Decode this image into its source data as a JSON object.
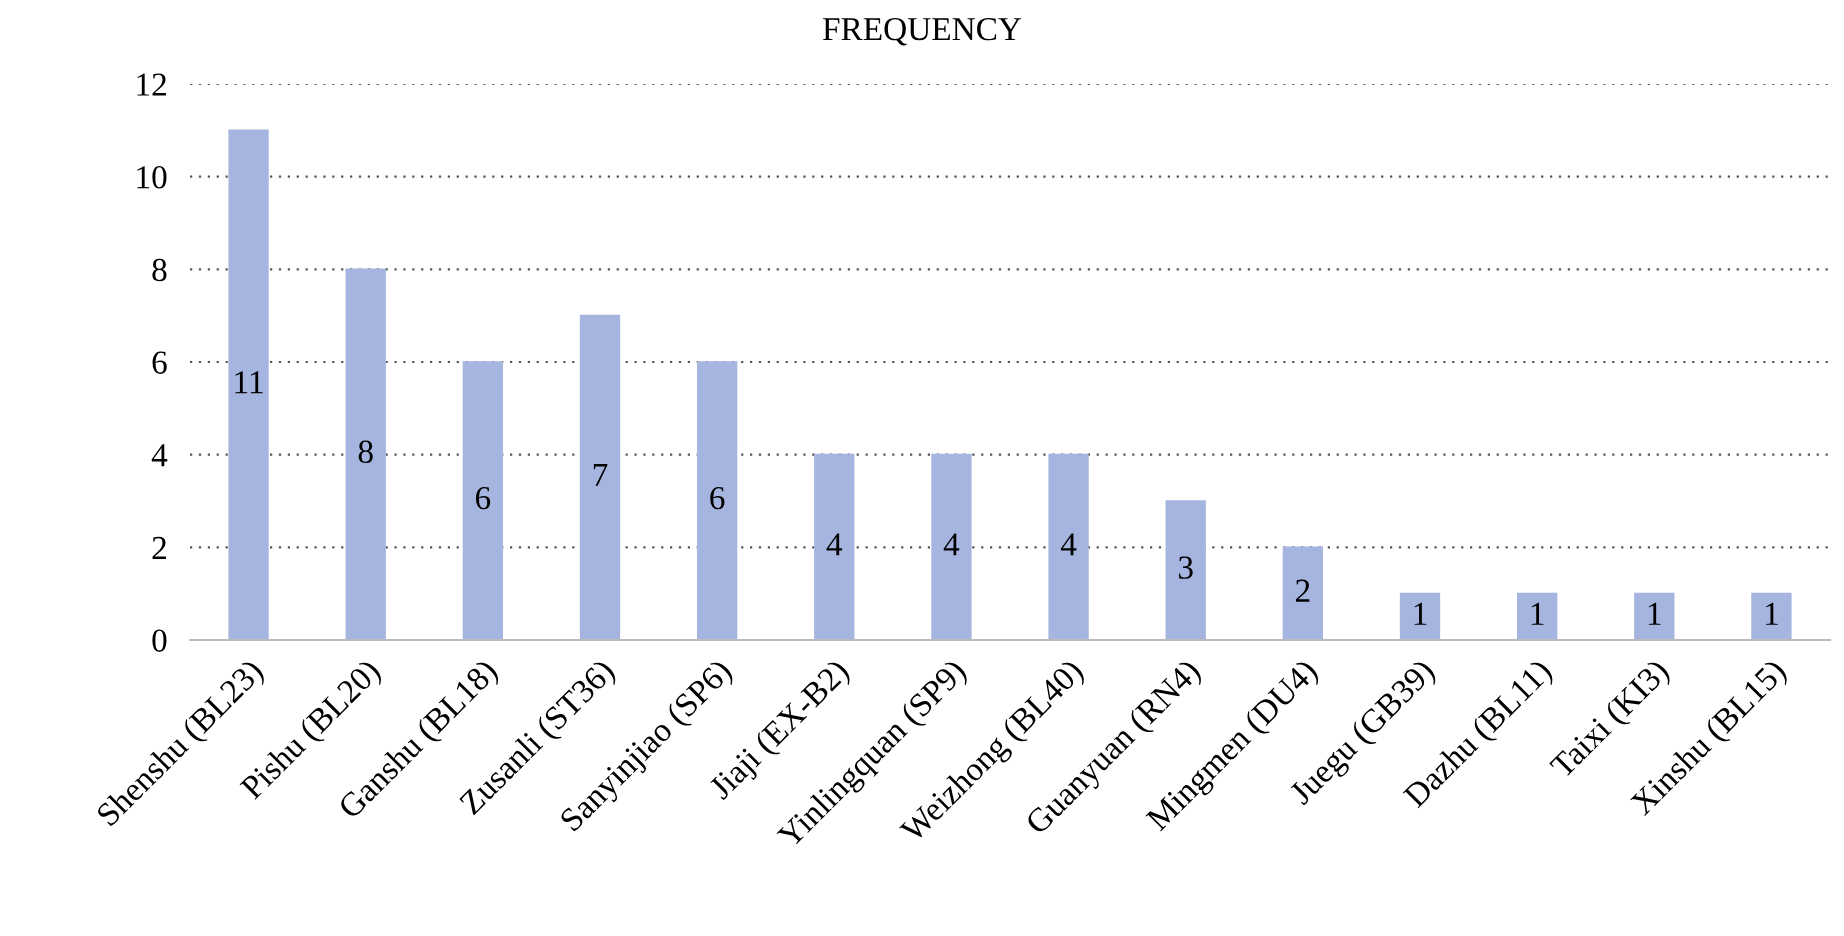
{
  "chart_data": {
    "type": "bar",
    "title": "FREQUENCY",
    "categories": [
      "Shenshu (BL23)",
      "Pishu (BL20)",
      "Ganshu (BL18)",
      "Zusanli (ST36)",
      "Sanyinjiao (SP6)",
      "Jiaji (EX-B2)",
      "Yinlingquan (SP9)",
      "Weizhong (BL40)",
      "Guanyuan (RN4)",
      "Mingmen (DU4)",
      "Juegu (GB39)",
      "Dazhu (BL11)",
      "Taixi (KI3)",
      "Xinshu (BL15)"
    ],
    "values": [
      11,
      8,
      6,
      7,
      6,
      4,
      4,
      4,
      3,
      2,
      1,
      1,
      1,
      1
    ],
    "color": "#a6b5e0",
    "ylim": [
      0,
      12
    ],
    "yticks": [
      0,
      2,
      4,
      6,
      8,
      10,
      12
    ],
    "grid": "y",
    "data_labels": true,
    "legend": false
  }
}
